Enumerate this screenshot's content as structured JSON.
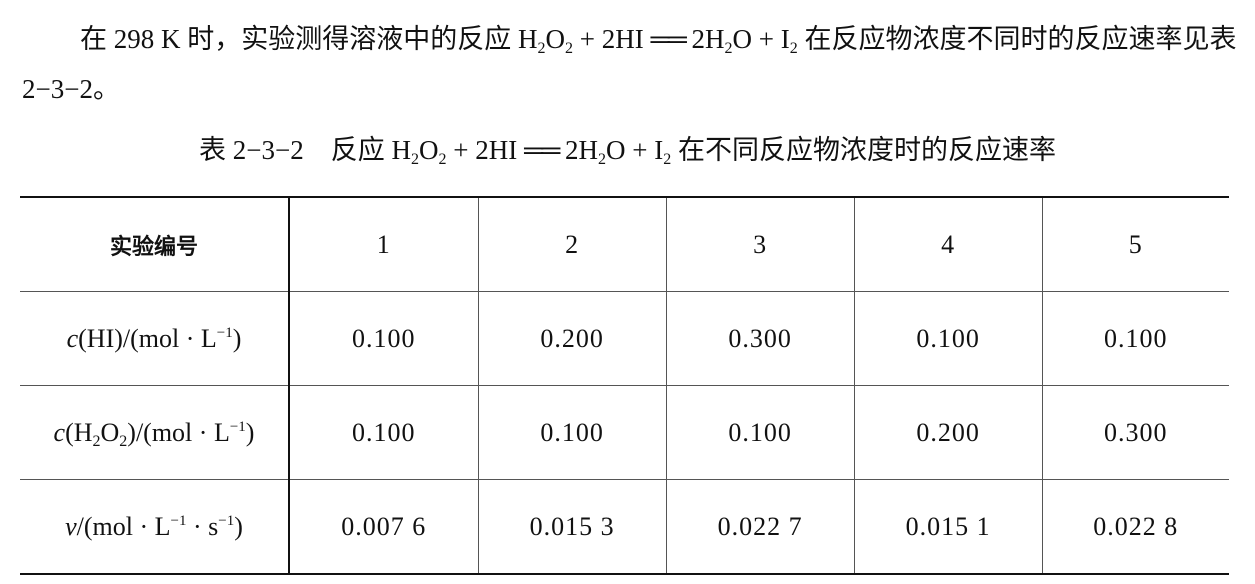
{
  "intro": [
    {
      "t": "在 298 K 时，实验测得溶液中的反应 H"
    },
    {
      "sub": "2"
    },
    {
      "t": "O"
    },
    {
      "sub": "2"
    },
    {
      "t": " + 2HI "
    },
    {
      "t": "══"
    },
    {
      "t": " 2H"
    },
    {
      "sub": "2"
    },
    {
      "t": "O + I"
    },
    {
      "sub": "2"
    },
    {
      "t": " 在反应物浓度不同时的反应速率见表 2−3−2。"
    }
  ],
  "caption": [
    {
      "t": "表 2−3−2　反应 H"
    },
    {
      "sub": "2"
    },
    {
      "t": "O"
    },
    {
      "sub": "2"
    },
    {
      "t": " + 2HI "
    },
    {
      "t": "══"
    },
    {
      "t": " 2H"
    },
    {
      "sub": "2"
    },
    {
      "t": "O + I"
    },
    {
      "sub": "2"
    },
    {
      "t": " 在不同反应物浓度时的反应速率"
    }
  ],
  "table": {
    "rows": [
      {
        "label": [
          {
            "t": "实验编号"
          }
        ],
        "values": [
          "1",
          "2",
          "3",
          "4",
          "5"
        ]
      },
      {
        "label": [
          {
            "i": "c"
          },
          {
            "t": "(HI)/(mol · L"
          },
          {
            "sup": "−1"
          },
          {
            "t": ")"
          }
        ],
        "values": [
          "0.100",
          "0.200",
          "0.300",
          "0.100",
          "0.100"
        ]
      },
      {
        "label": [
          {
            "i": "c"
          },
          {
            "t": "(H"
          },
          {
            "sub": "2"
          },
          {
            "t": "O"
          },
          {
            "sub": "2"
          },
          {
            "t": ")/(mol · L"
          },
          {
            "sup": "−1"
          },
          {
            "t": ")"
          }
        ],
        "values": [
          "0.100",
          "0.100",
          "0.100",
          "0.200",
          "0.300"
        ]
      },
      {
        "label": [
          {
            "i": "v"
          },
          {
            "t": "/(mol · L"
          },
          {
            "sup": "−1"
          },
          {
            "t": " · s"
          },
          {
            "sup": "−1"
          },
          {
            "t": ")"
          }
        ],
        "values": [
          "0.007 6",
          "0.015 3",
          "0.022 7",
          "0.015 1",
          "0.022 8"
        ]
      }
    ]
  }
}
